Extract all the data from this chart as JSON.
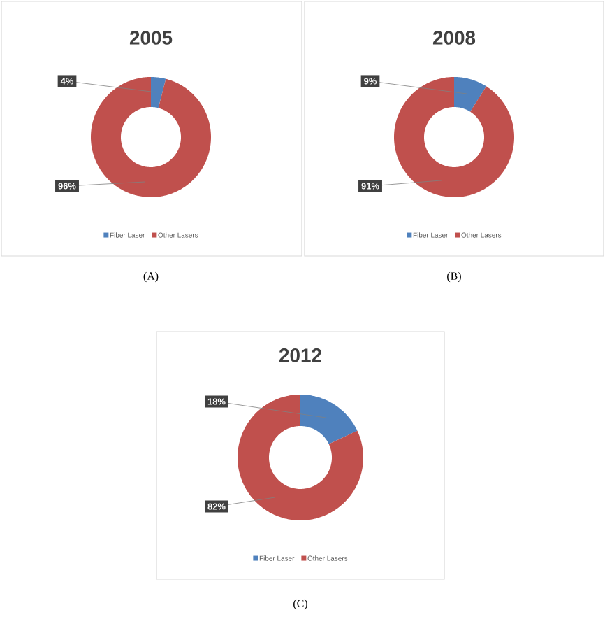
{
  "chart_data": [
    {
      "type": "donut",
      "title": "2005",
      "categories": [
        "Fiber Laser",
        "Other Lasers"
      ],
      "values": [
        4,
        96
      ],
      "colors": [
        "#4f81bd",
        "#c0504d"
      ],
      "value_labels": [
        "4%",
        "96%"
      ],
      "legend": "bottom",
      "annotations": [
        "(A)"
      ]
    },
    {
      "type": "donut",
      "title": "2008",
      "categories": [
        "Fiber Laser",
        "Other Lasers"
      ],
      "values": [
        9,
        91
      ],
      "colors": [
        "#4f81bd",
        "#c0504d"
      ],
      "value_labels": [
        "9%",
        "91%"
      ],
      "legend": "bottom",
      "annotations": [
        "(B)"
      ]
    },
    {
      "type": "donut",
      "title": "2012",
      "categories": [
        "Fiber Laser",
        "Other Lasers"
      ],
      "values": [
        18,
        82
      ],
      "colors": [
        "#4f81bd",
        "#c0504d"
      ],
      "value_labels": [
        "18%",
        "82%"
      ],
      "legend": "bottom",
      "annotations": [
        "(C)"
      ]
    }
  ]
}
